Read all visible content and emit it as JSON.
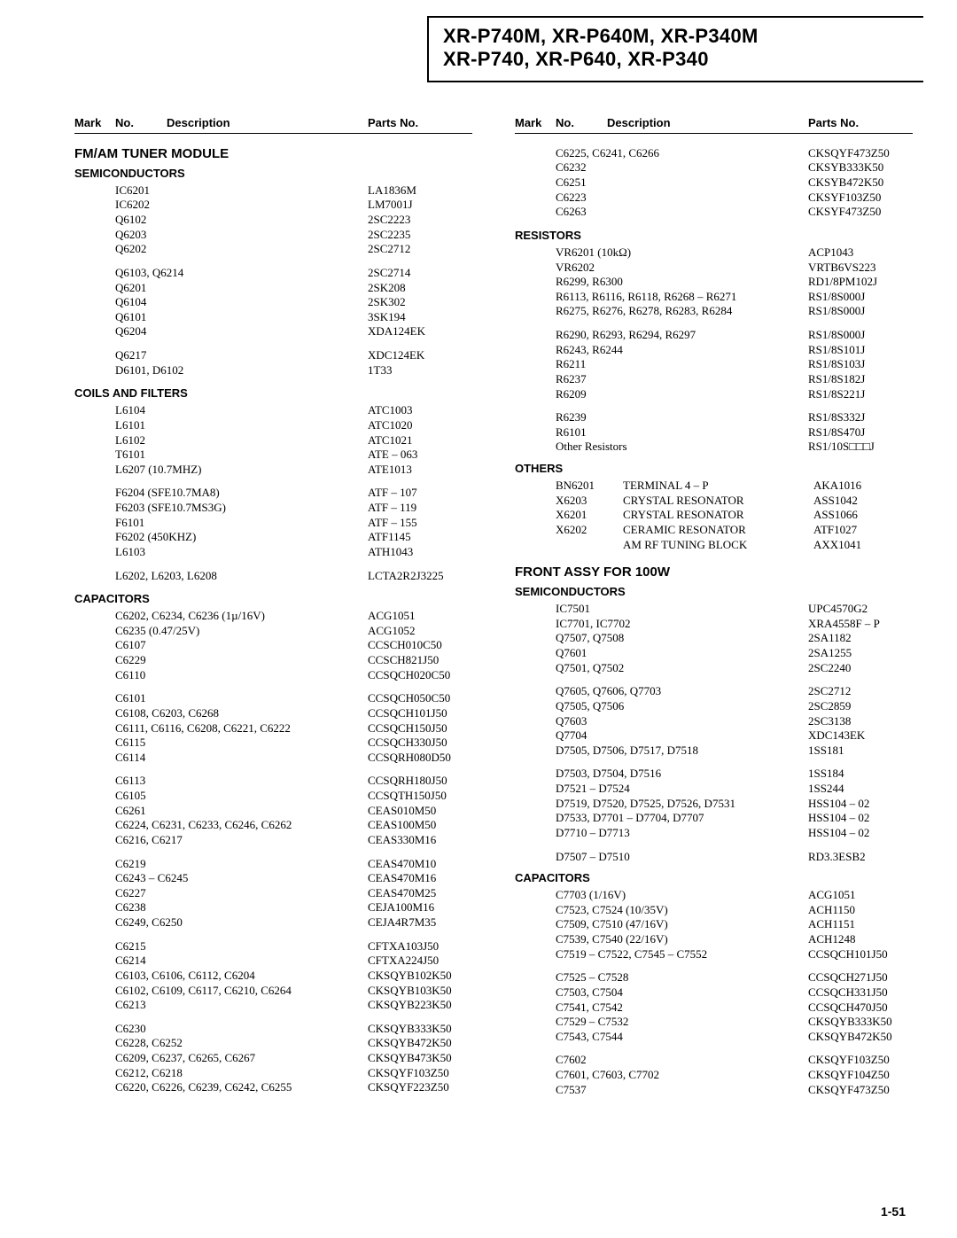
{
  "title_line1": "XR-P740M, XR-P640M, XR-P340M",
  "title_line2": "XR-P740, XR-P640, XR-P340",
  "head": {
    "mark": "Mark",
    "no": "No.",
    "desc": "Description",
    "part": "Parts No."
  },
  "page_no": "1-51",
  "left": {
    "h1_tuner": "FM/AM TUNER MODULE",
    "h2_semi": "SEMICONDUCTORS",
    "semi": [
      {
        "n": "IC6201",
        "p": "LA1836M"
      },
      {
        "n": "IC6202",
        "p": "LM7001J"
      },
      {
        "n": "Q6102",
        "p": "2SC2223"
      },
      {
        "n": "Q6203",
        "p": "2SC2235"
      },
      {
        "n": "Q6202",
        "p": "2SC2712"
      },
      {
        "gap": true
      },
      {
        "n": "Q6103, Q6214",
        "p": "2SC2714"
      },
      {
        "n": "Q6201",
        "p": "2SK208"
      },
      {
        "n": "Q6104",
        "p": "2SK302"
      },
      {
        "n": "Q6101",
        "p": "3SK194"
      },
      {
        "n": "Q6204",
        "p": "XDA124EK"
      },
      {
        "gap": true
      },
      {
        "n": "Q6217",
        "p": "XDC124EK"
      },
      {
        "n": "D6101, D6102",
        "p": "1T33"
      }
    ],
    "h2_coils": "COILS AND FILTERS",
    "coils": [
      {
        "n": "L6104",
        "p": "ATC1003"
      },
      {
        "n": "L6101",
        "p": "ATC1020"
      },
      {
        "n": "L6102",
        "p": "ATC1021"
      },
      {
        "n": "T6101",
        "p": "ATE – 063"
      },
      {
        "n": "L6207 (10.7MHZ)",
        "p": "ATE1013"
      },
      {
        "gap": true
      },
      {
        "n": "F6204 (SFE10.7MA8)",
        "p": "ATF – 107"
      },
      {
        "n": "F6203 (SFE10.7MS3G)",
        "p": "ATF – 119"
      },
      {
        "n": "F6101",
        "p": "ATF – 155"
      },
      {
        "n": "F6202 (450KHZ)",
        "p": "ATF1145"
      },
      {
        "n": "L6103",
        "p": "ATH1043"
      },
      {
        "gap": true
      },
      {
        "n": "L6202, L6203, L6208",
        "p": "LCTA2R2J3225"
      }
    ],
    "h2_caps": "CAPACITORS",
    "caps": [
      {
        "n": "C6202, C6234, C6236 (1µ/16V)",
        "p": "ACG1051"
      },
      {
        "n": "C6235 (0.47/25V)",
        "p": "ACG1052"
      },
      {
        "n": "C6107",
        "p": "CCSCH010C50"
      },
      {
        "n": "C6229",
        "p": "CCSCH821J50"
      },
      {
        "n": "C6110",
        "p": "CCSQCH020C50"
      },
      {
        "gap": true
      },
      {
        "n": "C6101",
        "p": "CCSQCH050C50"
      },
      {
        "n": "C6108, C6203, C6268",
        "p": "CCSQCH101J50"
      },
      {
        "n": "C6111, C6116, C6208, C6221, C6222",
        "p": "CCSQCH150J50"
      },
      {
        "n": "C6115",
        "p": "CCSQCH330J50"
      },
      {
        "n": "C6114",
        "p": "CCSQRH080D50"
      },
      {
        "gap": true
      },
      {
        "n": "C6113",
        "p": "CCSQRH180J50"
      },
      {
        "n": "C6105",
        "p": "CCSQTH150J50"
      },
      {
        "n": "C6261",
        "p": "CEAS010M50"
      },
      {
        "n": "C6224, C6231, C6233, C6246, C6262",
        "p": "CEAS100M50"
      },
      {
        "n": "C6216, C6217",
        "p": "CEAS330M16"
      },
      {
        "gap": true
      },
      {
        "n": "C6219",
        "p": "CEAS470M10"
      },
      {
        "n": "C6243 – C6245",
        "p": "CEAS470M16"
      },
      {
        "n": "C6227",
        "p": "CEAS470M25"
      },
      {
        "n": "C6238",
        "p": "CEJA100M16"
      },
      {
        "n": "C6249, C6250",
        "p": "CEJA4R7M35"
      },
      {
        "gap": true
      },
      {
        "n": "C6215",
        "p": "CFTXA103J50"
      },
      {
        "n": "C6214",
        "p": "CFTXA224J50"
      },
      {
        "n": "C6103, C6106, C6112, C6204",
        "p": "CKSQYB102K50"
      },
      {
        "n": "C6102, C6109, C6117, C6210, C6264",
        "p": "CKSQYB103K50"
      },
      {
        "n": "C6213",
        "p": "CKSQYB223K50"
      },
      {
        "gap": true
      },
      {
        "n": "C6230",
        "p": "CKSQYB333K50"
      },
      {
        "n": "C6228, C6252",
        "p": "CKSQYB472K50"
      },
      {
        "n": "C6209, C6237, C6265, C6267",
        "p": "CKSQYB473K50"
      },
      {
        "n": "C6212, C6218",
        "p": "CKSQYF103Z50"
      },
      {
        "n": "C6220, C6226, C6239, C6242, C6255",
        "p": "CKSQYF223Z50"
      }
    ]
  },
  "right": {
    "caps_cont": [
      {
        "n": "C6225, C6241, C6266",
        "p": "CKSQYF473Z50"
      },
      {
        "n": "C6232",
        "p": "CKSYB333K50"
      },
      {
        "n": "C6251",
        "p": "CKSYB472K50"
      },
      {
        "n": "C6223",
        "p": "CKSYF103Z50"
      },
      {
        "n": "C6263",
        "p": "CKSYF473Z50"
      }
    ],
    "h2_res": "RESISTORS",
    "res": [
      {
        "n": "VR6201 (10kΩ)",
        "p": "ACP1043"
      },
      {
        "n": "VR6202",
        "p": "VRTB6VS223"
      },
      {
        "n": "R6299, R6300",
        "p": "RD1/8PM102J"
      },
      {
        "n": "R6113, R6116, R6118, R6268 – R6271",
        "p": "RS1/8S000J"
      },
      {
        "n": "R6275, R6276, R6278, R6283, R6284",
        "p": "RS1/8S000J"
      },
      {
        "gap": true
      },
      {
        "n": "R6290, R6293, R6294, R6297",
        "p": "RS1/8S000J"
      },
      {
        "n": "R6243, R6244",
        "p": "RS1/8S101J"
      },
      {
        "n": "R6211",
        "p": "RS1/8S103J"
      },
      {
        "n": "R6237",
        "p": "RS1/8S182J"
      },
      {
        "n": "R6209",
        "p": "RS1/8S221J"
      },
      {
        "gap": true
      },
      {
        "n": "R6239",
        "p": "RS1/8S332J"
      },
      {
        "n": "R6101",
        "p": "RS1/8S470J"
      },
      {
        "n": "Other Resistors",
        "p": "RS1/10S□□□J"
      }
    ],
    "h2_oth": "OTHERS",
    "others": [
      {
        "n": "BN6201",
        "d": "TERMINAL 4 – P",
        "p": "AKA1016"
      },
      {
        "n": "X6203",
        "d": "CRYSTAL RESONATOR",
        "p": "ASS1042"
      },
      {
        "n": "X6201",
        "d": "CRYSTAL RESONATOR",
        "p": "ASS1066"
      },
      {
        "n": "X6202",
        "d": "CERAMIC RESONATOR",
        "p": "ATF1027"
      },
      {
        "n": "",
        "d": "AM RF TUNING BLOCK",
        "p": "AXX1041"
      }
    ],
    "h1_front": "FRONT ASSY FOR 100W",
    "h2_semi2": "SEMICONDUCTORS",
    "semi2": [
      {
        "n": "IC7501",
        "p": "UPC4570G2"
      },
      {
        "n": "IC7701, IC7702",
        "p": "XRA4558F – P"
      },
      {
        "n": "Q7507, Q7508",
        "p": "2SA1182"
      },
      {
        "n": "Q7601",
        "p": "2SA1255"
      },
      {
        "n": "Q7501, Q7502",
        "p": "2SC2240"
      },
      {
        "gap": true
      },
      {
        "n": "Q7605, Q7606, Q7703",
        "p": "2SC2712"
      },
      {
        "n": "Q7505, Q7506",
        "p": "2SC2859"
      },
      {
        "n": "Q7603",
        "p": "2SC3138"
      },
      {
        "n": "Q7704",
        "p": "XDC143EK"
      },
      {
        "n": "D7505, D7506, D7517, D7518",
        "p": "1SS181"
      },
      {
        "gap": true
      },
      {
        "n": "D7503, D7504, D7516",
        "p": "1SS184"
      },
      {
        "n": "D7521 – D7524",
        "p": "1SS244"
      },
      {
        "n": "D7519, D7520, D7525, D7526, D7531",
        "p": "HSS104 – 02"
      },
      {
        "n": "D7533, D7701 – D7704, D7707",
        "p": "HSS104 – 02"
      },
      {
        "n": "D7710 – D7713",
        "p": "HSS104 – 02"
      },
      {
        "gap": true
      },
      {
        "n": "D7507 – D7510",
        "p": "RD3.3ESB2"
      }
    ],
    "h2_caps2": "CAPACITORS",
    "caps2": [
      {
        "n": "C7703 (1/16V)",
        "p": "ACG1051"
      },
      {
        "n": "C7523, C7524 (10/35V)",
        "p": "ACH1150"
      },
      {
        "n": "C7509, C7510 (47/16V)",
        "p": "ACH1151"
      },
      {
        "n": "C7539, C7540 (22/16V)",
        "p": "ACH1248"
      },
      {
        "n": "C7519 – C7522, C7545 – C7552",
        "p": "CCSQCH101J50"
      },
      {
        "gap": true
      },
      {
        "n": "C7525 – C7528",
        "p": "CCSQCH271J50"
      },
      {
        "n": "C7503, C7504",
        "p": "CCSQCH331J50"
      },
      {
        "n": "C7541, C7542",
        "p": "CCSQCH470J50"
      },
      {
        "n": "C7529 – C7532",
        "p": "CKSQYB333K50"
      },
      {
        "n": "C7543, C7544",
        "p": "CKSQYB472K50"
      },
      {
        "gap": true
      },
      {
        "n": "C7602",
        "p": "CKSQYF103Z50"
      },
      {
        "n": "C7601, C7603, C7702",
        "p": "CKSQYF104Z50"
      },
      {
        "n": "C7537",
        "p": "CKSQYF473Z50"
      }
    ]
  }
}
